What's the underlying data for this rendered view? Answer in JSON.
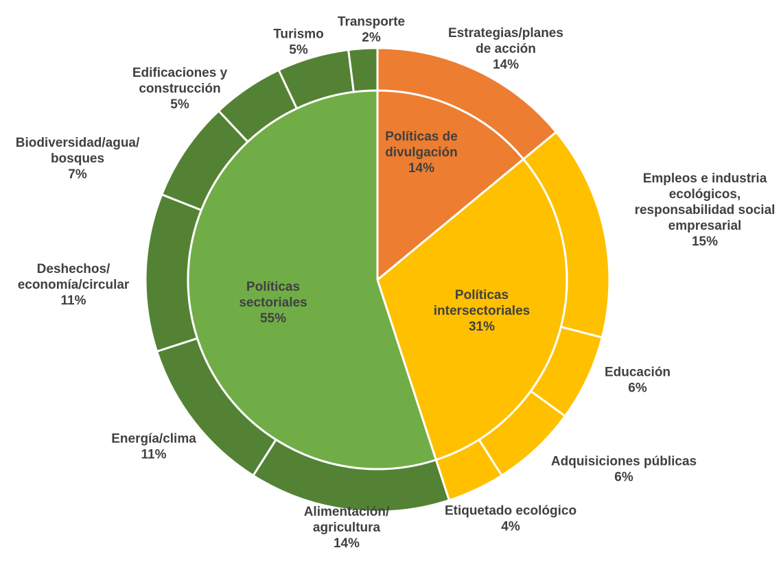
{
  "chart_data": {
    "type": "pie",
    "inner": [
      {
        "name": "Políticas de divulgación",
        "lines": [
          "Políticas de",
          "divulgación"
        ],
        "pct": "14%",
        "value": 14,
        "color": "#ED7D31"
      },
      {
        "name": "Políticas intersectoriales",
        "lines": [
          "Políticas",
          "intersectoriales"
        ],
        "pct": "31%",
        "value": 31,
        "color": "#FFC000"
      },
      {
        "name": "Políticas sectoriales",
        "lines": [
          "Políticas",
          "sectoriales"
        ],
        "pct": "55%",
        "value": 55,
        "color": "#70AD47"
      }
    ],
    "outer": [
      {
        "name": "Estrategias/planes de acción",
        "lines": [
          "Estrategias/planes",
          "de acción"
        ],
        "pct": "14%",
        "value": 14,
        "color": "#ED7D31"
      },
      {
        "name": "Empleos e industria ecológicos, responsabilidad social empresarial",
        "lines": [
          "Empleos e industria",
          "ecológicos,",
          "responsabilidad social",
          "empresarial"
        ],
        "pct": "15%",
        "value": 15,
        "color": "#FFC000"
      },
      {
        "name": "Educación",
        "lines": [
          "Educación"
        ],
        "pct": "6%",
        "value": 6,
        "color": "#FFC000"
      },
      {
        "name": "Adquisiciones públicas",
        "lines": [
          "Adquisiciones públicas"
        ],
        "pct": "6%",
        "value": 6,
        "color": "#FFC000"
      },
      {
        "name": "Etiquetado ecológico",
        "lines": [
          "Etiquetado ecológico"
        ],
        "pct": "4%",
        "value": 4,
        "color": "#FFC000"
      },
      {
        "name": "Alimentación/agricultura",
        "lines": [
          "Alimentación/",
          "agricultura"
        ],
        "pct": "14%",
        "value": 14,
        "color": "#548235"
      },
      {
        "name": "Energía/clima",
        "lines": [
          "Energía/clima"
        ],
        "pct": "11%",
        "value": 11,
        "color": "#548235"
      },
      {
        "name": "Deshechos/economía/circular",
        "lines": [
          "Deshechos/",
          "economía/circular"
        ],
        "pct": "11%",
        "value": 11,
        "color": "#548235"
      },
      {
        "name": "Biodiversidad/agua/bosques",
        "lines": [
          "Biodiversidad/agua/",
          "bosques"
        ],
        "pct": "7%",
        "value": 7,
        "color": "#548235"
      },
      {
        "name": "Edificaciones y construcción",
        "lines": [
          "Edificaciones y",
          "construcción"
        ],
        "pct": "5%",
        "value": 5,
        "color": "#548235"
      },
      {
        "name": "Turismo",
        "lines": [
          "Turismo"
        ],
        "pct": "5%",
        "value": 5,
        "color": "#548235"
      },
      {
        "name": "Transporte",
        "lines": [
          "Transporte"
        ],
        "pct": "2%",
        "value": 2,
        "color": "#548235"
      }
    ],
    "label_color": "#404040"
  }
}
